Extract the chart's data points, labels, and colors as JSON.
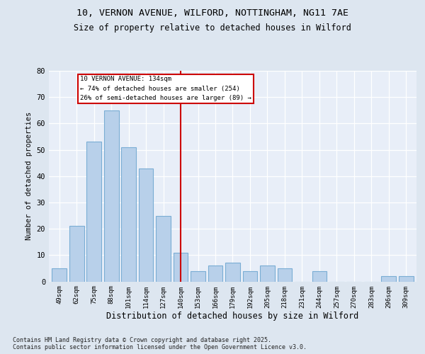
{
  "title_line1": "10, VERNON AVENUE, WILFORD, NOTTINGHAM, NG11 7AE",
  "title_line2": "Size of property relative to detached houses in Wilford",
  "xlabel": "Distribution of detached houses by size in Wilford",
  "ylabel": "Number of detached properties",
  "categories": [
    "49sqm",
    "62sqm",
    "75sqm",
    "88sqm",
    "101sqm",
    "114sqm",
    "127sqm",
    "140sqm",
    "153sqm",
    "166sqm",
    "179sqm",
    "192sqm",
    "205sqm",
    "218sqm",
    "231sqm",
    "244sqm",
    "257sqm",
    "270sqm",
    "283sqm",
    "296sqm",
    "309sqm"
  ],
  "values": [
    5,
    21,
    53,
    65,
    51,
    43,
    25,
    11,
    4,
    6,
    7,
    4,
    6,
    5,
    0,
    4,
    0,
    0,
    0,
    2,
    2
  ],
  "bar_color": "#b8d0ea",
  "bar_edge_color": "#7aadd4",
  "highlight_line_color": "#cc0000",
  "annotation_text": "10 VERNON AVENUE: 134sqm\n← 74% of detached houses are smaller (254)\n26% of semi-detached houses are larger (89) →",
  "annotation_box_color": "#ffffff",
  "annotation_box_edge": "#cc0000",
  "ylim": [
    0,
    80
  ],
  "yticks": [
    0,
    10,
    20,
    30,
    40,
    50,
    60,
    70,
    80
  ],
  "bg_color": "#dde6f0",
  "plot_bg_color": "#e8eef8",
  "footer": "Contains HM Land Registry data © Crown copyright and database right 2025.\nContains public sector information licensed under the Open Government Licence v3.0."
}
